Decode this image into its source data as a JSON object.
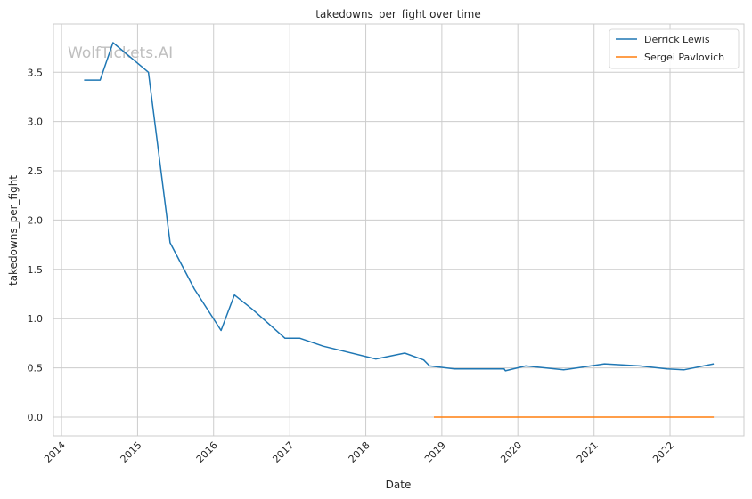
{
  "chart_data": {
    "type": "line",
    "title": "takedowns_per_fight over time",
    "xlabel": "Date",
    "ylabel": "takedowns_per_fight",
    "watermark": "WolfTickets.AI",
    "grid": true,
    "legend_position": "top-right",
    "x_tick_labels": [
      "2014",
      "2015",
      "2016",
      "2017",
      "2018",
      "2019",
      "2020",
      "2021",
      "2022"
    ],
    "y_ticks": [
      0.0,
      0.5,
      1.0,
      1.5,
      2.0,
      2.5,
      3.0,
      3.5
    ],
    "y_tick_labels": [
      "0.0",
      "0.5",
      "1.0",
      "1.5",
      "2.0",
      "2.5",
      "3.0",
      "3.5"
    ],
    "xlim": [
      "2013-11-23",
      "2022-12-22"
    ],
    "ylim": [
      -0.19,
      3.99
    ],
    "series": [
      {
        "name": "Derrick Lewis",
        "color": "#1f77b4",
        "points": [
          [
            "2014-04-19",
            3.42
          ],
          [
            "2014-07-05",
            3.42
          ],
          [
            "2014-09-05",
            3.8
          ],
          [
            "2015-02-22",
            3.5
          ],
          [
            "2015-06-06",
            1.77
          ],
          [
            "2015-10-01",
            1.3
          ],
          [
            "2016-02-06",
            0.88
          ],
          [
            "2016-04-10",
            1.24
          ],
          [
            "2016-07-08",
            1.09
          ],
          [
            "2016-12-09",
            0.8
          ],
          [
            "2017-02-19",
            0.8
          ],
          [
            "2017-06-10",
            0.72
          ],
          [
            "2018-02-18",
            0.59
          ],
          [
            "2018-07-07",
            0.65
          ],
          [
            "2018-10-06",
            0.58
          ],
          [
            "2018-11-03",
            0.52
          ],
          [
            "2019-03-02",
            0.49
          ],
          [
            "2019-10-27",
            0.49
          ],
          [
            "2019-11-02",
            0.47
          ],
          [
            "2020-02-08",
            0.52
          ],
          [
            "2020-08-08",
            0.48
          ],
          [
            "2021-02-20",
            0.54
          ],
          [
            "2021-08-08",
            0.52
          ],
          [
            "2021-12-18",
            0.49
          ],
          [
            "2022-03-08",
            0.48
          ],
          [
            "2022-07-30",
            0.54
          ]
        ]
      },
      {
        "name": "Sergei Pavlovich",
        "color": "#ff7f0e",
        "points": [
          [
            "2018-11-24",
            0.0
          ],
          [
            "2019-06-01",
            0.0
          ],
          [
            "2020-01-01",
            0.0
          ],
          [
            "2021-01-01",
            0.0
          ],
          [
            "2022-01-01",
            0.0
          ],
          [
            "2022-07-30",
            0.0
          ]
        ]
      }
    ]
  }
}
